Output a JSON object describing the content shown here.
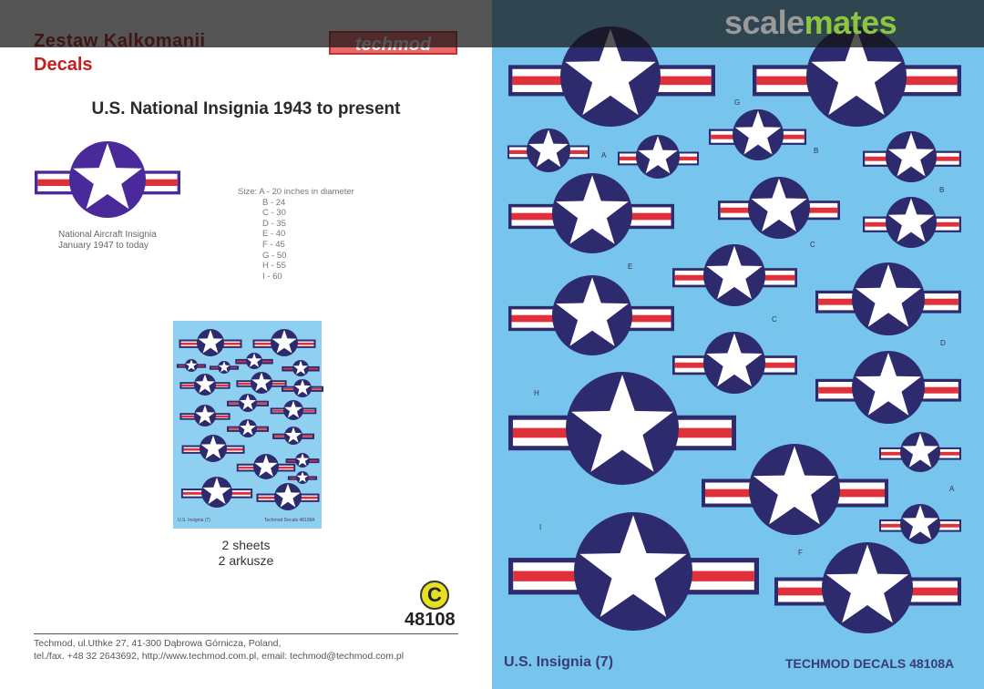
{
  "header": {
    "title_pl": "Zestaw Kalkomanii",
    "title_en": "Decals",
    "brand_logo": "techmod"
  },
  "heading": "U.S. National Insignia 1943 to present",
  "insignia_caption": [
    "National Aircraft Insignia",
    "January 1947 to today"
  ],
  "sizes": {
    "first": "Size: A - 20 inches in diameter",
    "items": [
      "B - 24",
      "C - 30",
      "D - 35",
      "E - 40",
      "F - 45",
      "G - 50",
      "H - 55",
      "I  - 60"
    ]
  },
  "mini_sheet": {
    "left_label": "U.S. Insignia (7)",
    "right_label": "Techmod Decals 48108A"
  },
  "sheets": [
    "2 sheets",
    "2 arkusze"
  ],
  "copyright_symbol": "C",
  "product_code": "48108",
  "address": [
    "Techmod, ul.Uthke 27, 41-300 Dąbrowa Górnicza, Poland,",
    "tel./fax. +48 32 2643692, http://www.techmod.com.pl, email: techmod@techmod.com.pl"
  ],
  "decal_sheet": {
    "letters": [
      "G",
      "A",
      "B",
      "B",
      "C",
      "E",
      "C",
      "D",
      "H",
      "A",
      "I",
      "F"
    ],
    "footer_left": "U.S. Insignia (7)",
    "footer_right": "TECHMOD DECALS 48108A"
  },
  "watermark": {
    "part1": "scale",
    "part2": "mates"
  },
  "colors": {
    "navy": "#2e2a6e",
    "red": "#e0303a",
    "white": "#ffffff",
    "sheet_blue": "#77c4ec",
    "title_red": "#c41e1e",
    "watermark_green": "#8cc63f"
  }
}
